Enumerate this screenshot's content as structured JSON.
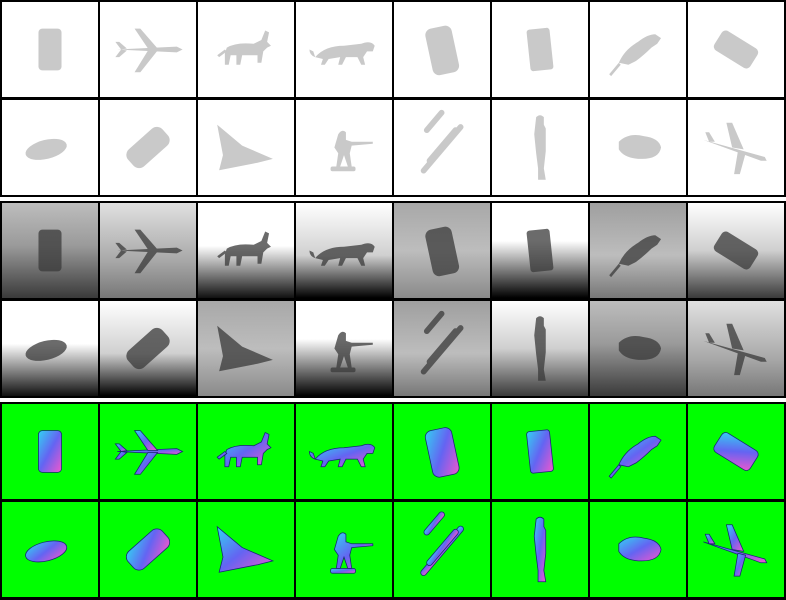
{
  "grid": {
    "columns": 8,
    "rows_per_band": 2
  },
  "bands": [
    {
      "id": "silhouette",
      "style": "mask"
    },
    {
      "id": "depth",
      "style": "depth"
    },
    {
      "id": "normal",
      "style": "normal"
    }
  ],
  "colors": {
    "mask_background": "#ffffff",
    "mask_object": "#c9c9c9",
    "normal_background": "#00ff00",
    "normal_object_primary": "#6a5cff",
    "normal_object_secondary": "#ff4fd8",
    "normal_object_tertiary": "#35d0ff",
    "depth_light": "#f2f2f2",
    "depth_dark": "#000000",
    "depth_object": "#3a3a3a",
    "grid_lines": "#000000"
  },
  "objects_row1": [
    "car-topdown",
    "airliner",
    "donkey",
    "panther",
    "car-angled",
    "car-box",
    "rat",
    "car-diagonal"
  ],
  "objects_row2": [
    "car-low",
    "car-tilted",
    "stealth-jet",
    "soldier-rifle",
    "plane-topdown",
    "standing-person",
    "lump-animal",
    "airliner-angled"
  ]
}
